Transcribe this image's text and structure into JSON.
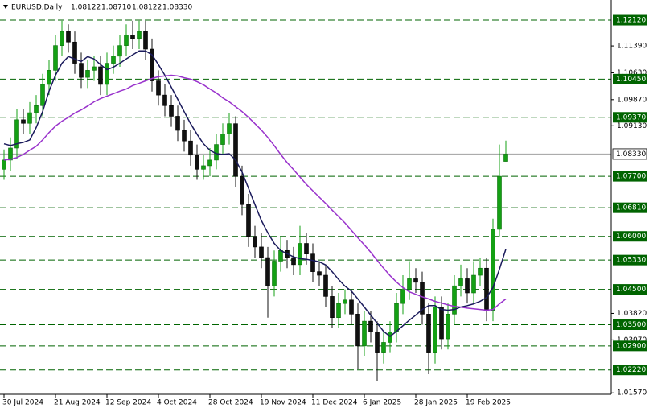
{
  "chart_data": {
    "type": "candlestick",
    "title": "EURUSD,Daily",
    "header_ohlc": [
      {
        "value": 1.08122,
        "label": "1.08122"
      },
      {
        "value": 1.0871,
        "label": "1.08710"
      },
      {
        "value": 1.08122,
        "label": "1.08122"
      },
      {
        "value": 1.0833,
        "label": "1.08330"
      }
    ],
    "categories": [
      "30 Jul 2024",
      null,
      null,
      null,
      null,
      null,
      null,
      null,
      "21 Aug 2024",
      null,
      null,
      null,
      null,
      null,
      null,
      null,
      "12 Sep 2024",
      null,
      null,
      null,
      null,
      null,
      null,
      null,
      "4 Oct 2024",
      null,
      null,
      null,
      null,
      null,
      null,
      null,
      "28 Oct 2024",
      null,
      null,
      null,
      null,
      null,
      null,
      null,
      "19 Nov 2024",
      null,
      null,
      null,
      null,
      null,
      null,
      null,
      "11 Dec 2024",
      null,
      null,
      null,
      null,
      null,
      null,
      null,
      "6 Jan 2025",
      null,
      null,
      null,
      null,
      null,
      null,
      null,
      "28 Jan 2025",
      null,
      null,
      null,
      null,
      null,
      null,
      null,
      "19 Feb 2025",
      null,
      null,
      null,
      null,
      null,
      null
    ],
    "open": [
      1.079,
      1.0816,
      1.085,
      1.093,
      1.092,
      1.095,
      1.097,
      1.103,
      1.107,
      1.114,
      1.118,
      1.115,
      1.109,
      1.105,
      1.107,
      1.108,
      1.103,
      1.109,
      1.111,
      1.114,
      1.117,
      1.116,
      1.118,
      1.113,
      1.104,
      1.1,
      1.097,
      1.094,
      1.09,
      1.087,
      1.083,
      1.079,
      1.08,
      1.0816,
      1.086,
      1.089,
      1.0919,
      1.077,
      1.069,
      1.06,
      1.057,
      1.054,
      1.046,
      1.053,
      1.056,
      1.054,
      1.052,
      1.058,
      1.055,
      1.05,
      1.049,
      1.043,
      1.037,
      1.041,
      1.042,
      1.038,
      1.029,
      1.036,
      1.033,
      1.027,
      1.03,
      1.033,
      1.041,
      1.045,
      1.048,
      1.047,
      1.038,
      1.027,
      1.04,
      1.031,
      1.038,
      1.046,
      1.048,
      1.044,
      1.049,
      1.051,
      1.039,
      1.062,
      1.08122
    ],
    "high": [
      1.0846,
      1.088,
      1.096,
      1.096,
      1.098,
      1.1,
      1.106,
      1.11,
      1.117,
      1.121,
      1.12,
      1.118,
      1.112,
      1.11,
      1.111,
      1.111,
      1.112,
      1.114,
      1.117,
      1.12,
      1.121,
      1.121,
      1.121,
      1.116,
      1.107,
      1.103,
      1.1,
      1.097,
      1.093,
      1.09,
      1.086,
      1.083,
      1.085,
      1.089,
      1.092,
      1.095,
      1.094,
      1.08,
      1.072,
      1.063,
      1.061,
      1.057,
      1.056,
      1.06,
      1.059,
      1.057,
      1.063,
      1.061,
      1.058,
      1.053,
      1.052,
      1.046,
      1.044,
      1.045,
      1.045,
      1.041,
      1.039,
      1.039,
      1.036,
      1.033,
      1.036,
      1.044,
      1.049,
      1.053,
      1.051,
      1.05,
      1.041,
      1.043,
      1.043,
      1.041,
      1.049,
      1.052,
      1.051,
      1.053,
      1.054,
      1.054,
      1.065,
      1.086,
      1.0871
    ],
    "low": [
      1.076,
      1.0786,
      1.082,
      1.089,
      1.089,
      1.092,
      1.094,
      1.1,
      1.104,
      1.111,
      1.112,
      1.106,
      1.102,
      1.102,
      1.104,
      1.1,
      1.1,
      1.106,
      1.108,
      1.111,
      1.113,
      1.113,
      1.11,
      1.101,
      1.097,
      1.094,
      1.091,
      1.087,
      1.084,
      1.08,
      1.076,
      1.076,
      1.077,
      1.079,
      1.083,
      1.086,
      1.074,
      1.066,
      1.057,
      1.054,
      1.051,
      1.037,
      1.043,
      1.05,
      1.051,
      1.049,
      1.049,
      1.052,
      1.047,
      1.046,
      1.04,
      1.034,
      1.034,
      1.038,
      1.035,
      1.0225,
      1.026,
      1.03,
      1.019,
      1.024,
      1.027,
      1.03,
      1.038,
      1.042,
      1.044,
      1.035,
      1.021,
      1.024,
      1.028,
      1.028,
      1.035,
      1.043,
      1.041,
      1.041,
      1.046,
      1.036,
      1.036,
      1.06,
      1.08122
    ],
    "close": [
      1.0816,
      1.085,
      1.093,
      1.092,
      1.095,
      1.097,
      1.103,
      1.107,
      1.114,
      1.118,
      1.115,
      1.109,
      1.105,
      1.107,
      1.108,
      1.103,
      1.109,
      1.111,
      1.114,
      1.117,
      1.116,
      1.118,
      1.113,
      1.104,
      1.1,
      1.097,
      1.094,
      1.09,
      1.087,
      1.083,
      1.079,
      1.08,
      1.0816,
      1.086,
      1.089,
      1.0919,
      1.077,
      1.069,
      1.06,
      1.057,
      1.054,
      1.046,
      1.053,
      1.056,
      1.054,
      1.052,
      1.058,
      1.055,
      1.05,
      1.049,
      1.043,
      1.037,
      1.041,
      1.042,
      1.038,
      1.029,
      1.036,
      1.033,
      1.027,
      1.03,
      1.033,
      1.041,
      1.045,
      1.048,
      1.047,
      1.038,
      1.027,
      1.04,
      1.031,
      1.038,
      1.046,
      1.048,
      1.044,
      1.049,
      1.051,
      1.039,
      1.062,
      1.077,
      1.0833
    ],
    "up_color": "#14a014",
    "down_color": "#111111",
    "lines": [
      {
        "color": "#1b1b5c",
        "values": [
          1.0862,
          1.0857,
          1.0862,
          1.0866,
          1.0873,
          1.0908,
          1.0953,
          1.1011,
          1.1056,
          1.109,
          1.1109,
          1.1102,
          1.1095,
          1.1109,
          1.1102,
          1.1086,
          1.1072,
          1.1079,
          1.109,
          1.1102,
          1.1114,
          1.1125,
          1.1125,
          1.1114,
          1.1086,
          1.1056,
          1.1022,
          1.0988,
          1.0953,
          1.0919,
          1.0889,
          1.0862,
          1.0844,
          1.0834,
          1.0832,
          1.0834,
          1.0816,
          1.0782,
          1.0736,
          1.069,
          1.0645,
          1.061,
          1.058,
          1.056,
          1.0551,
          1.0542,
          1.0537,
          1.0535,
          1.0532,
          1.0528,
          1.0519,
          1.05,
          1.0478,
          1.0459,
          1.0445,
          1.0423,
          1.04,
          1.0377,
          1.0354,
          1.0331,
          1.0317,
          1.0331,
          1.0347,
          1.0363,
          1.0377,
          1.0393,
          1.0404,
          1.0404,
          1.0393,
          1.0391,
          1.0393,
          1.04,
          1.0404,
          1.0409,
          1.0416,
          1.0427,
          1.0455,
          1.0507,
          1.0564
        ]
      },
      {
        "color": "#9932cc",
        "values": [
          1.0816,
          1.0818,
          1.0823,
          1.0832,
          1.0844,
          1.0855,
          1.0873,
          1.0894,
          1.0912,
          1.0926,
          1.0937,
          1.0949,
          1.0958,
          1.0969,
          1.0981,
          1.099,
          1.0997,
          1.1004,
          1.1011,
          1.1017,
          1.1027,
          1.1033,
          1.104,
          1.1047,
          1.1052,
          1.1054,
          1.1056,
          1.1054,
          1.1049,
          1.1045,
          1.1038,
          1.1029,
          1.1017,
          1.1006,
          1.0992,
          1.0981,
          1.0967,
          1.0953,
          1.0937,
          1.0919,
          1.0901,
          1.088,
          1.0857,
          1.0832,
          1.0809,
          1.0789,
          1.0768,
          1.0747,
          1.0729,
          1.0711,
          1.0693,
          1.0674,
          1.0656,
          1.0638,
          1.0617,
          1.0596,
          1.0576,
          1.0555,
          1.0532,
          1.051,
          1.0489,
          1.0471,
          1.0455,
          1.0443,
          1.0436,
          1.0429,
          1.0423,
          1.0416,
          1.0411,
          1.0406,
          1.0402,
          1.04,
          1.0397,
          1.0395,
          1.0393,
          1.0391,
          1.0393,
          1.0409,
          1.0423
        ]
      }
    ],
    "ylim": [
      1.0153,
      1.1269
    ],
    "yticks": [
      {
        "value": 1.1139,
        "label": "1.11390"
      },
      {
        "value": 1.1063,
        "label": "1.10630"
      },
      {
        "value": 1.0987,
        "label": "1.09870"
      },
      {
        "value": 1.0913,
        "label": "1.09130"
      },
      {
        "value": 1.0382,
        "label": "1.03820"
      },
      {
        "value": 1.0307,
        "label": "1.03070"
      },
      {
        "value": 1.0157,
        "label": "1.01570"
      }
    ],
    "levels": [
      {
        "value": 1.1212,
        "label": "1.12120"
      },
      {
        "value": 1.1045,
        "label": "1.10450"
      },
      {
        "value": 1.0937,
        "label": "1.09370"
      },
      {
        "value": 1.077,
        "label": "1.07700"
      },
      {
        "value": 1.0681,
        "label": "1.06810"
      },
      {
        "value": 1.06,
        "label": "1.06000"
      },
      {
        "value": 1.0533,
        "label": "1.05330"
      },
      {
        "value": 1.045,
        "label": "1.04500"
      },
      {
        "value": 1.035,
        "label": "1.03500"
      },
      {
        "value": 1.029,
        "label": "1.02900"
      },
      {
        "value": 1.0222,
        "label": "1.02220"
      }
    ],
    "level_color": "#006400",
    "current_price": {
      "value": 1.0833,
      "label": "1.08330"
    }
  }
}
